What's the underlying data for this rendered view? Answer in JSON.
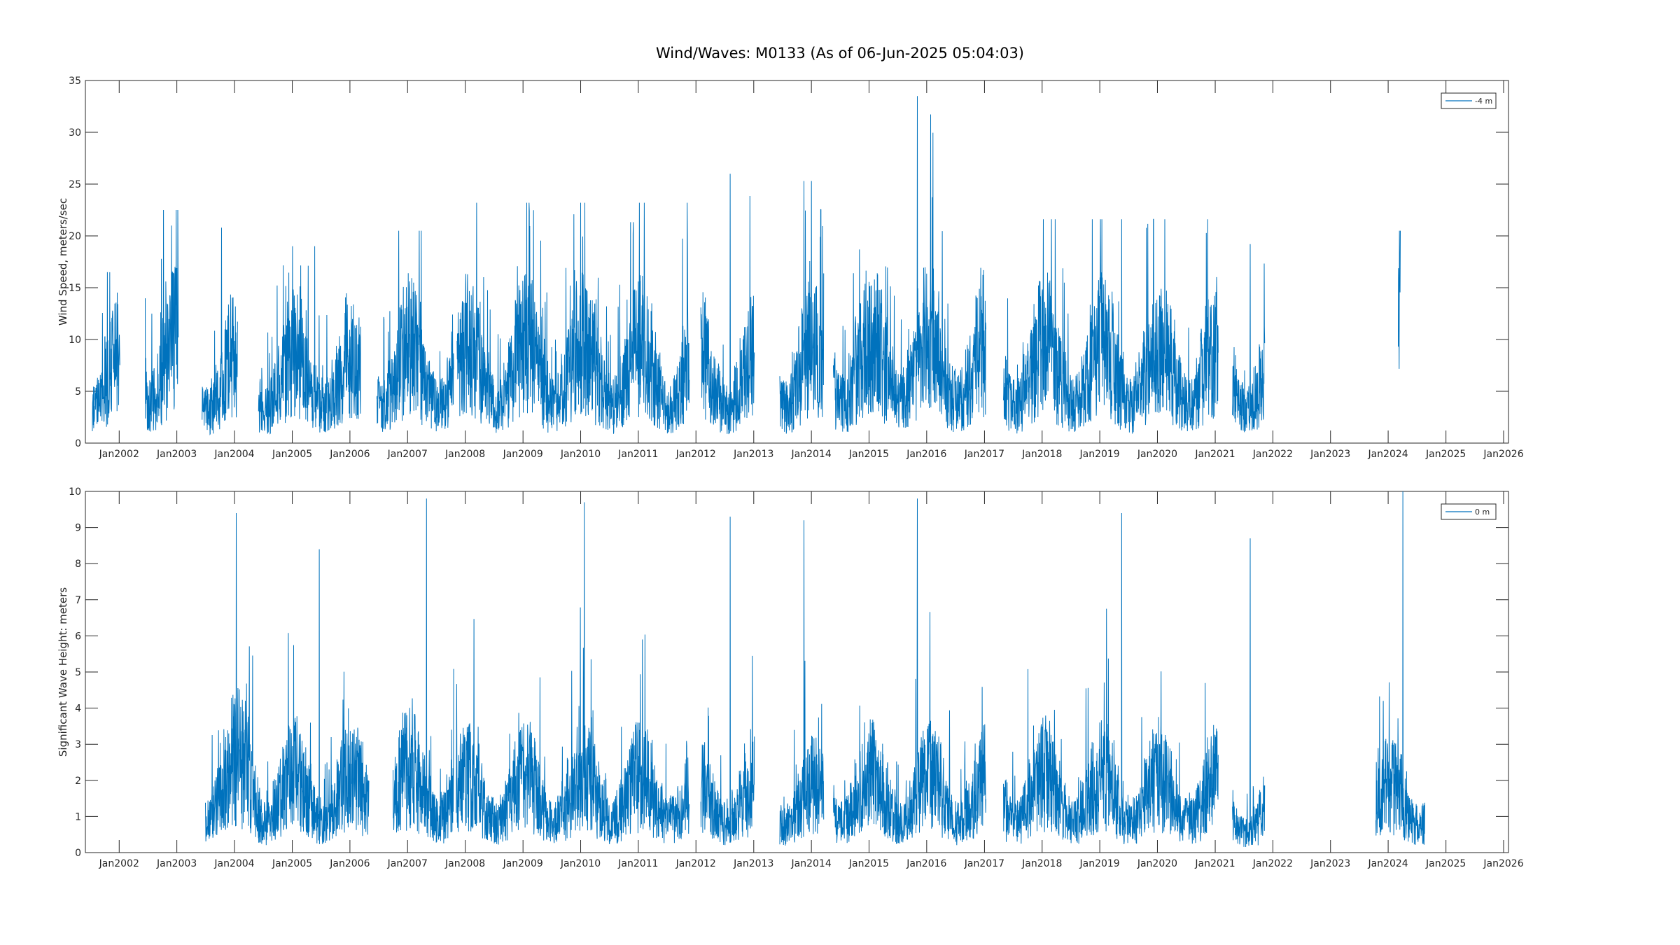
{
  "figure": {
    "title": "Wind/Waves: M0133 (As of 06-Jun-2025 05:04:03)",
    "background": "#ffffff"
  },
  "colors": {
    "series": "#0072bd",
    "axis": "#262626",
    "text": "#262626"
  },
  "chart_data": [
    {
      "type": "line",
      "ylabel": "Wind Speed, meters/sec",
      "xlabel": "",
      "x_type": "date",
      "xlim": [
        "2001-06-01",
        "2026-02-01"
      ],
      "ylim": [
        0,
        35
      ],
      "yticks": [
        0,
        5,
        10,
        15,
        20,
        25,
        30,
        35
      ],
      "xticks": [
        "2002-01-01",
        "2003-01-01",
        "2004-01-01",
        "2005-01-01",
        "2006-01-01",
        "2007-01-01",
        "2008-01-01",
        "2009-01-01",
        "2010-01-01",
        "2011-01-01",
        "2012-01-01",
        "2013-01-01",
        "2014-01-01",
        "2015-01-01",
        "2016-01-01",
        "2017-01-01",
        "2018-01-01",
        "2019-01-01",
        "2020-01-01",
        "2021-01-01",
        "2022-01-01",
        "2023-01-01",
        "2024-01-01",
        "2025-01-01",
        "2026-01-01"
      ],
      "xtick_labels": [
        "Jan2002",
        "Jan2003",
        "Jan2004",
        "Jan2005",
        "Jan2006",
        "Jan2007",
        "Jan2008",
        "Jan2009",
        "Jan2010",
        "Jan2011",
        "Jan2012",
        "Jan2013",
        "Jan2014",
        "Jan2015",
        "Jan2016",
        "Jan2017",
        "Jan2018",
        "Jan2019",
        "Jan2020",
        "Jan2021",
        "Jan2022",
        "Jan2023",
        "Jan2024",
        "Jan2025",
        "Jan2026"
      ],
      "grid": false,
      "legend": "top-right",
      "series": [
        {
          "name": "-4 m",
          "color": "#0072bd",
          "segments": [
            {
              "start": "2001-07-15",
              "end": "2002-01-05",
              "max": 16.5,
              "typical": 6.0
            },
            {
              "start": "2002-06-15",
              "end": "2003-01-10",
              "max": 22.5,
              "typical": 7.0
            },
            {
              "start": "2003-06-10",
              "end": "2004-01-20",
              "max": 20.8,
              "typical": 6.0
            },
            {
              "start": "2004-06-01",
              "end": "2006-03-10",
              "max": 19.0,
              "typical": 6.0
            },
            {
              "start": "2006-06-20",
              "end": "2007-10-20",
              "max": 20.5,
              "typical": 6.5
            },
            {
              "start": "2007-11-10",
              "end": "2011-11-20",
              "max": 23.2,
              "typical": 6.5
            },
            {
              "start": "2012-02-01",
              "end": "2013-01-05",
              "max": 26.0,
              "typical": 6.0
            },
            {
              "start": "2013-06-15",
              "end": "2014-03-20",
              "max": 25.3,
              "typical": 6.5
            },
            {
              "start": "2014-05-20",
              "end": "2017-01-10",
              "max": 33.5,
              "typical": 7.0
            },
            {
              "start": "2017-05-01",
              "end": "2021-01-20",
              "max": 21.6,
              "typical": 6.5
            },
            {
              "start": "2021-04-20",
              "end": "2021-11-10",
              "max": 19.2,
              "typical": 5.5
            },
            {
              "start": "2024-03-05",
              "end": "2024-03-18",
              "max": 20.5,
              "typical": 11.0
            }
          ]
        }
      ]
    },
    {
      "type": "line",
      "ylabel": "Significant Wave Height:  meters",
      "xlabel": "",
      "x_type": "date",
      "xlim": [
        "2001-06-01",
        "2026-02-01"
      ],
      "ylim": [
        0,
        10
      ],
      "yticks": [
        0,
        1,
        2,
        3,
        4,
        5,
        6,
        7,
        8,
        9,
        10
      ],
      "xticks": [
        "2002-01-01",
        "2003-01-01",
        "2004-01-01",
        "2005-01-01",
        "2006-01-01",
        "2007-01-01",
        "2008-01-01",
        "2009-01-01",
        "2010-01-01",
        "2011-01-01",
        "2012-01-01",
        "2013-01-01",
        "2014-01-01",
        "2015-01-01",
        "2016-01-01",
        "2017-01-01",
        "2018-01-01",
        "2019-01-01",
        "2020-01-01",
        "2021-01-01",
        "2022-01-01",
        "2023-01-01",
        "2024-01-01",
        "2025-01-01",
        "2026-01-01"
      ],
      "xtick_labels": [
        "Jan2002",
        "Jan2003",
        "Jan2004",
        "Jan2005",
        "Jan2006",
        "Jan2007",
        "Jan2008",
        "Jan2009",
        "Jan2010",
        "Jan2011",
        "Jan2012",
        "Jan2013",
        "Jan2014",
        "Jan2015",
        "Jan2016",
        "Jan2017",
        "Jan2018",
        "Jan2019",
        "Jan2020",
        "Jan2021",
        "Jan2022",
        "Jan2023",
        "Jan2024",
        "Jan2025",
        "Jan2026"
      ],
      "grid": false,
      "legend": "top-right",
      "series": [
        {
          "name": "0 m",
          "color": "#0072bd",
          "segments": [
            {
              "start": "2003-07-01",
              "end": "2004-06-20",
              "max": 9.4,
              "typical": 1.8
            },
            {
              "start": "2004-06-01",
              "end": "2006-05-01",
              "max": 8.4,
              "typical": 1.5
            },
            {
              "start": "2006-10-01",
              "end": "2007-10-20",
              "max": 9.8,
              "typical": 1.6
            },
            {
              "start": "2007-11-05",
              "end": "2011-11-20",
              "max": 9.7,
              "typical": 1.5
            },
            {
              "start": "2012-02-01",
              "end": "2013-01-05",
              "max": 9.3,
              "typical": 1.3
            },
            {
              "start": "2013-06-15",
              "end": "2014-03-20",
              "max": 9.2,
              "typical": 1.3
            },
            {
              "start": "2014-05-20",
              "end": "2017-01-10",
              "max": 9.8,
              "typical": 1.5
            },
            {
              "start": "2017-05-01",
              "end": "2021-01-20",
              "max": 9.4,
              "typical": 1.5
            },
            {
              "start": "2021-04-20",
              "end": "2021-11-10",
              "max": 8.7,
              "typical": 1.0
            },
            {
              "start": "2023-10-15",
              "end": "2024-08-20",
              "max": 10.0,
              "typical": 1.3
            }
          ]
        }
      ]
    }
  ]
}
